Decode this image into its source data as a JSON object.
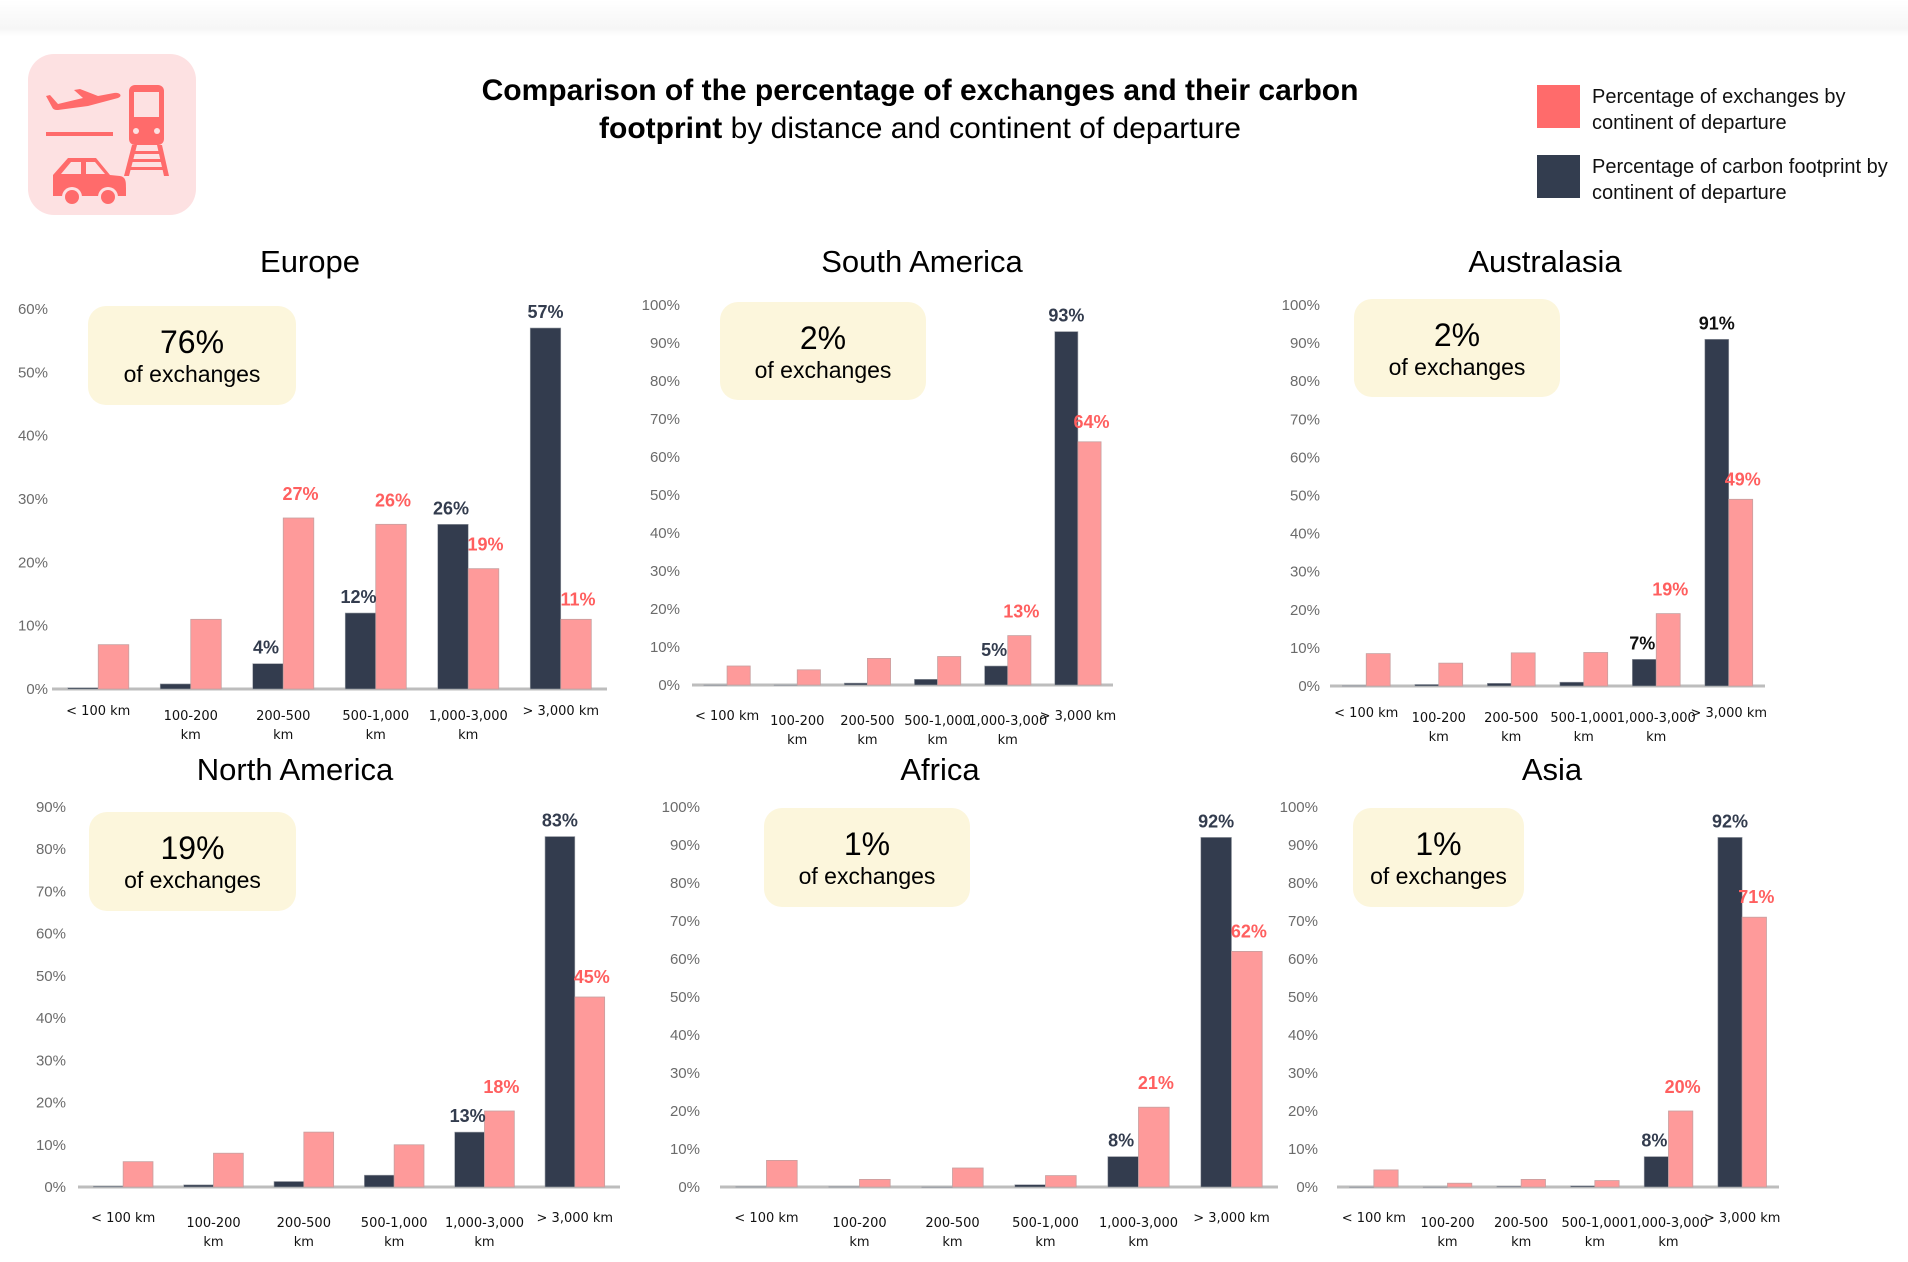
{
  "header": {
    "icon": "transport-modes-icon (plane, train, car)",
    "title_bold_line1": "Comparison of the percentage of exchanges and their carbon",
    "title_bold_line2": "footprint",
    "title_regular_line2": " by distance and continent of departure"
  },
  "legend": [
    {
      "label": "Percentage of exchanges by continent of departure",
      "color": "#ff6b6b"
    },
    {
      "label": "Percentage of carbon footprint by continent of departure",
      "color": "#333d4f"
    }
  ],
  "colors": {
    "exchanges_bar": "#fe9a9a",
    "exchanges_label": "#ff5f5f",
    "footprint_bar": "#333c4e",
    "footprint_label": "#333c4e",
    "callout_bg": "#fcf6dc",
    "logo_bg": "#fde1e2",
    "logo_fg": "#ff6b6b"
  },
  "callout_suffix": "of exchanges",
  "chart_data": [
    {
      "type": "bar",
      "title": "Europe",
      "share_of_exchanges": "76%",
      "categories": [
        "< 100 km",
        "100-200 km",
        "200-500 km",
        "500-1,000 km",
        "1,000-3,000 km",
        "> 3,000 km"
      ],
      "ylim": [
        0,
        60
      ],
      "yticks": [
        "0%",
        "10%",
        "20%",
        "30%",
        "40%",
        "50%",
        "60%"
      ],
      "series": [
        {
          "name": "Percentage of carbon footprint by continent of departure",
          "values": [
            0.2,
            0.8,
            4,
            12,
            26,
            57
          ],
          "labels": [
            "",
            "",
            "4%",
            "12%",
            "26%",
            "57%"
          ]
        },
        {
          "name": "Percentage of exchanges by continent of departure",
          "values": [
            7,
            11,
            27,
            26,
            19,
            11
          ],
          "labels": [
            "",
            "",
            "27%",
            "26%",
            "19%",
            "11%"
          ]
        }
      ]
    },
    {
      "type": "bar",
      "title": "South America",
      "share_of_exchanges": "2%",
      "categories": [
        "< 100 km",
        "100-200 km",
        "200-500 km",
        "500-1,000 km",
        "1,000-3,000 km",
        "> 3,000 km"
      ],
      "ylim": [
        0,
        100
      ],
      "yticks": [
        "0%",
        "10%",
        "20%",
        "30%",
        "40%",
        "50%",
        "60%",
        "70%",
        "80%",
        "90%",
        "100%"
      ],
      "series": [
        {
          "name": "Percentage of carbon footprint by continent of departure",
          "values": [
            0,
            0,
            0.5,
            1.5,
            5,
            93
          ],
          "labels": [
            "",
            "",
            "",
            "",
            "5%",
            "93%"
          ]
        },
        {
          "name": "Percentage of exchanges by continent of departure",
          "values": [
            5,
            4,
            7,
            7.5,
            13,
            64
          ],
          "labels": [
            "",
            "",
            "",
            "",
            "13%",
            "64%"
          ]
        }
      ]
    },
    {
      "type": "bar",
      "title": "Australasia",
      "share_of_exchanges": "2%",
      "categories": [
        "< 100 km",
        "100-200 km",
        "200-500 km",
        "500-1,000 km",
        "1,000-3,000 km",
        "> 3,000 km"
      ],
      "ylim": [
        0,
        100
      ],
      "yticks": [
        "0%",
        "10%",
        "20%",
        "30%",
        "40%",
        "50%",
        "60%",
        "70%",
        "80%",
        "90%",
        "100%"
      ],
      "series": [
        {
          "name": "Percentage of carbon footprint by continent of departure",
          "values": [
            0.1,
            0.4,
            0.7,
            1,
            7,
            91
          ],
          "labels": [
            "",
            "",
            "",
            "",
            "7%",
            "91%"
          ]
        },
        {
          "name": "Percentage of exchanges by continent of departure",
          "values": [
            8.5,
            6,
            8.7,
            8.8,
            19,
            49
          ],
          "labels": [
            "",
            "",
            "",
            "",
            "19%",
            "49%"
          ]
        }
      ]
    },
    {
      "type": "bar",
      "title": "North America",
      "share_of_exchanges": "19%",
      "categories": [
        "< 100 km",
        "100-200 km",
        "200-500 km",
        "500-1,000 km",
        "1,000-3,000 km",
        "> 3,000 km"
      ],
      "ylim": [
        0,
        90
      ],
      "yticks": [
        "0%",
        "10%",
        "20%",
        "30%",
        "40%",
        "50%",
        "60%",
        "70%",
        "80%",
        "90%"
      ],
      "series": [
        {
          "name": "Percentage of carbon footprint by continent of departure",
          "values": [
            0.2,
            0.5,
            1.3,
            2.8,
            13,
            83
          ],
          "labels": [
            "",
            "",
            "",
            "",
            "13%",
            "83%"
          ]
        },
        {
          "name": "Percentage of exchanges by continent of departure",
          "values": [
            6,
            8,
            13,
            10,
            18,
            45
          ],
          "labels": [
            "",
            "",
            "",
            "",
            "18%",
            "45%"
          ]
        }
      ]
    },
    {
      "type": "bar",
      "title": "Africa",
      "share_of_exchanges": "1%",
      "categories": [
        "< 100 km",
        "100-200 km",
        "200-500 km",
        "500-1,000 km",
        "1,000-3,000 km",
        "> 3,000 km"
      ],
      "ylim": [
        0,
        100
      ],
      "yticks": [
        "0%",
        "10%",
        "20%",
        "30%",
        "40%",
        "50%",
        "60%",
        "70%",
        "80%",
        "90%",
        "100%"
      ],
      "series": [
        {
          "name": "Percentage of carbon footprint by continent of departure",
          "values": [
            0.1,
            0.1,
            0,
            0.6,
            8,
            92
          ],
          "labels": [
            "",
            "",
            "",
            "",
            "8%",
            "92%"
          ]
        },
        {
          "name": "Percentage of exchanges by continent of departure",
          "values": [
            7,
            2,
            5,
            3,
            21,
            62
          ],
          "labels": [
            "",
            "",
            "",
            "",
            "21%",
            "62%"
          ]
        }
      ]
    },
    {
      "type": "bar",
      "title": "Asia",
      "share_of_exchanges": "1%",
      "categories": [
        "< 100 km",
        "100-200 km",
        "200-500 km",
        "500-1,000 km",
        "1,000-3,000 km",
        "> 3,000 km"
      ],
      "ylim": [
        0,
        100
      ],
      "yticks": [
        "0%",
        "10%",
        "20%",
        "30%",
        "40%",
        "50%",
        "60%",
        "70%",
        "80%",
        "90%",
        "100%"
      ],
      "series": [
        {
          "name": "Percentage of carbon footprint by continent of departure",
          "values": [
            0,
            0,
            0.2,
            0.3,
            8,
            92
          ],
          "labels": [
            "",
            "",
            "",
            "",
            "8%",
            "92%"
          ]
        },
        {
          "name": "Percentage of exchanges by continent of departure",
          "values": [
            4.5,
            1,
            2,
            1.7,
            20,
            71
          ],
          "labels": [
            "",
            "",
            "",
            "",
            "20%",
            "71%"
          ]
        }
      ]
    }
  ]
}
